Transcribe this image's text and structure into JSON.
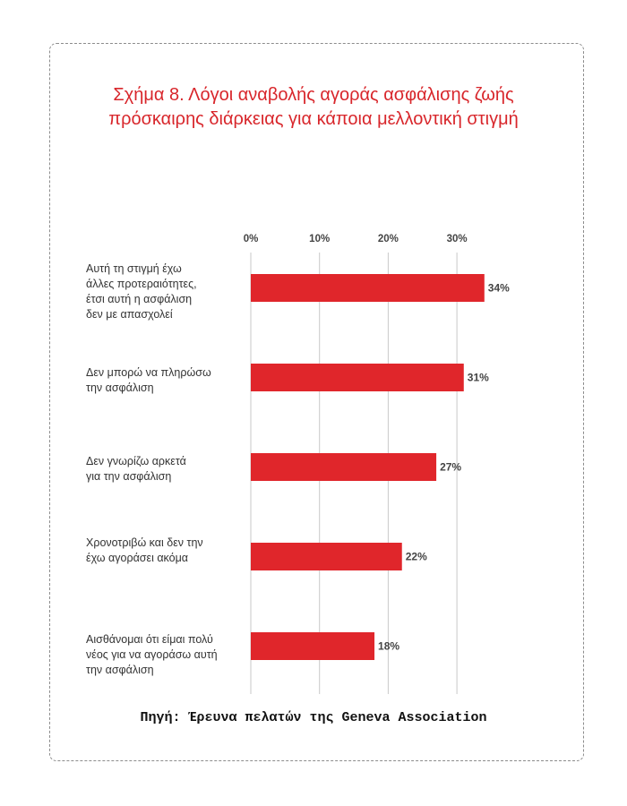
{
  "title_line1": "Σχήμα 8. Λόγοι αναβολής αγοράς ασφάλισης ζωής",
  "title_line2": "πρόσκαιρης διάρκειας για κάποια μελλοντική στιγμή",
  "source": "Πηγή: Έρευνα πελατών της Geneva Association",
  "chart_data": {
    "type": "bar",
    "orientation": "horizontal",
    "categories": [
      "Αυτή τη στιγμή έχω\nάλλες προτεραιότητες,\nέτσι αυτή η ασφάλιση\nδεν με απασχολεί",
      "Δεν μπορώ να πληρώσω\nτην ασφάλιση",
      "Δεν γνωρίζω αρκετά\nγια την ασφάλιση",
      "Χρονοτριβώ και δεν την\nέχω αγοράσει ακόμα",
      "Αισθάνομαι ότι είμαι πολύ\nνέος για να αγοράσω αυτή\nτην ασφάλιση"
    ],
    "values": [
      34,
      31,
      27,
      22,
      18
    ],
    "value_labels": [
      "34%",
      "31%",
      "27%",
      "22%",
      "18%"
    ],
    "xticks": [
      0,
      10,
      20,
      30
    ],
    "xtick_labels": [
      "0%",
      "10%",
      "20%",
      "30%"
    ],
    "xlim": [
      0,
      40
    ],
    "grid": true,
    "bar_color": "#e0262b",
    "title_color": "#d8262b"
  }
}
